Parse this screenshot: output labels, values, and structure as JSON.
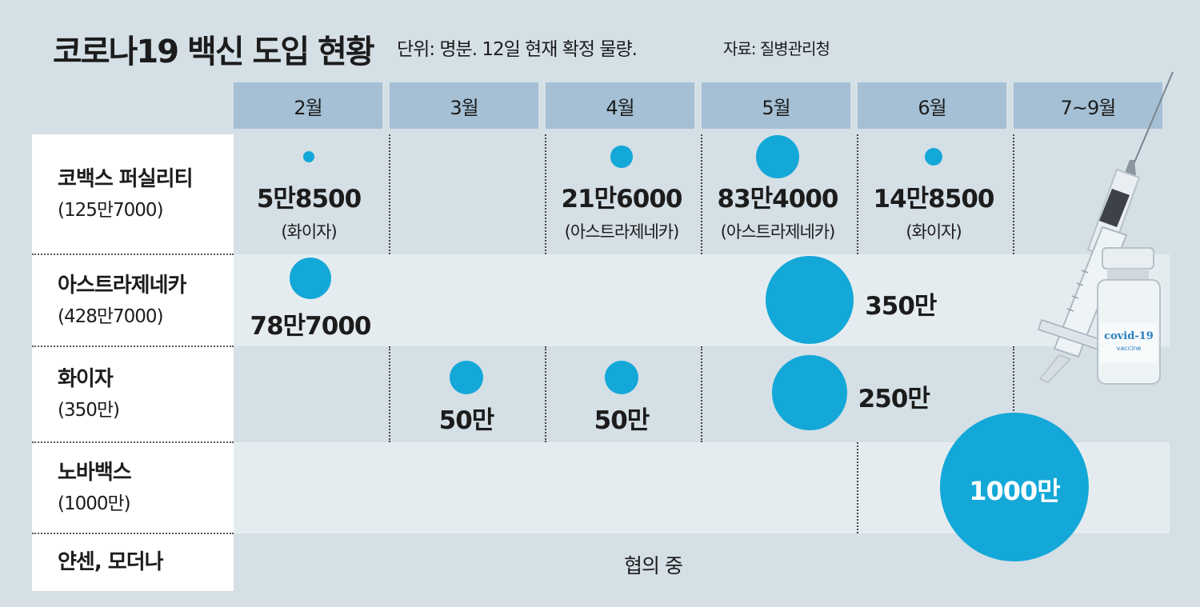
{
  "title": "코로나19 백신 도입 현황",
  "unit_note": "단위: 명분. 12일 현재 확정 물량.",
  "source": "자료: 질병관리청",
  "months": [
    "2월",
    "3월",
    "4월",
    "5월",
    "6월",
    "7~9월"
  ],
  "rows": [
    {
      "name": "코백스 퍼실리티",
      "total": "(125만7000)"
    },
    {
      "name": "아스트라제네카",
      "total": "(428만7000)"
    },
    {
      "name": "화이자",
      "total": "(350만)"
    },
    {
      "name": "노바백스",
      "total": "(1000만)"
    },
    {
      "name": "얀센, 모더나",
      "note": "협의 중"
    }
  ],
  "vial_label": {
    "main": "covid-19",
    "sub": "vaccine"
  },
  "colors": {
    "bubble": "#14a8d8",
    "header": "#a5c0d5",
    "background": "#d5dfe6"
  },
  "chart_data": {
    "type": "bubble",
    "title": "코로나19 백신 도입 현황",
    "unit": "명분",
    "categories": [
      "2월",
      "3월",
      "4월",
      "5월",
      "6월",
      "7~9월"
    ],
    "series": [
      {
        "name": "코백스 퍼실리티",
        "total": 1257000,
        "points": [
          {
            "period": "2월",
            "value": 58500,
            "label": "5만8500",
            "vendor": "(화이자)"
          },
          {
            "period": "4월",
            "value": 216000,
            "label": "21만6000",
            "vendor": "(아스트라제네카)"
          },
          {
            "period": "5월",
            "value": 834000,
            "label": "83만4000",
            "vendor": "(아스트라제네카)"
          },
          {
            "period": "6월",
            "value": 148500,
            "label": "14만8500",
            "vendor": "(화이자)"
          }
        ]
      },
      {
        "name": "아스트라제네카",
        "total": 4287000,
        "points": [
          {
            "period": "2월",
            "value": 787000,
            "label": "78만7000"
          },
          {
            "period": "5~6월",
            "value": 3500000,
            "label": "350만"
          }
        ]
      },
      {
        "name": "화이자",
        "total": 3500000,
        "points": [
          {
            "period": "3월",
            "value": 500000,
            "label": "50만"
          },
          {
            "period": "4월",
            "value": 500000,
            "label": "50만"
          },
          {
            "period": "5~6월",
            "value": 2500000,
            "label": "250만"
          }
        ]
      },
      {
        "name": "노바백스",
        "total": 10000000,
        "points": [
          {
            "period": "6~9월",
            "value": 10000000,
            "label": "1000만"
          }
        ]
      },
      {
        "name": "얀센, 모더나",
        "note": "협의 중",
        "points": []
      }
    ]
  }
}
